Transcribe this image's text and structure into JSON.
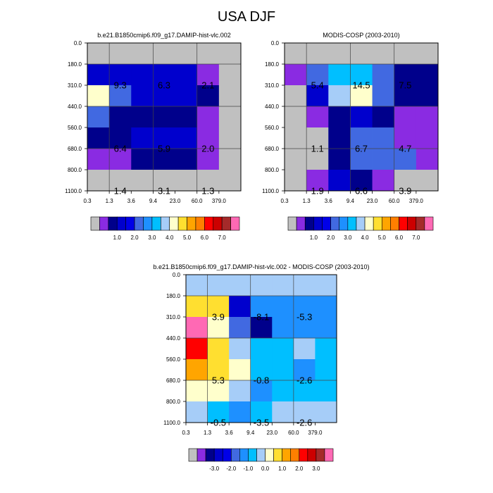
{
  "title": "USA DJF",
  "pressure_labels": [
    "0.0",
    "180.0",
    "310.0",
    "440.0",
    "560.0",
    "680.0",
    "800.0",
    "1100.0"
  ],
  "tau_labels": [
    "0.3",
    "1.3",
    "3.6",
    "9.4",
    "23.0",
    "60.0",
    "379.0"
  ],
  "palettes": {
    "absolute": [
      "#c0c0c0",
      "#8a2be2",
      "#00008b",
      "#0000cd",
      "#0000e8",
      "#4169e1",
      "#1e90ff",
      "#00bfff",
      "#a6cdf8",
      "#ffffcc",
      "#ffdf30",
      "#ffa500",
      "#ff7f00",
      "#ff0000",
      "#cc0000",
      "#a52a2a",
      "#ff69b4"
    ],
    "difference": [
      "#c0c0c0",
      "#8a2be2",
      "#00008b",
      "#0000cd",
      "#0000e8",
      "#4169e1",
      "#1e90ff",
      "#00bfff",
      "#a6cdf8",
      "#ffffcc",
      "#ffdf30",
      "#ffa500",
      "#ff7f00",
      "#ff0000",
      "#cc0000",
      "#a52a2a",
      "#ff69b4"
    ]
  },
  "chart_data": [
    {
      "type": "heatmap",
      "title": "b.e21.B1850cmip6.f09_g17.DAMIP-hist-vlc.002",
      "x_ticks": [
        "0.3",
        "1.3",
        "3.6",
        "9.4",
        "23.0",
        "60.0",
        "379.0"
      ],
      "y_ticks": [
        "0.0",
        "180.0",
        "310.0",
        "440.0",
        "560.0",
        "680.0",
        "800.0",
        "1100.0"
      ],
      "colorbar_labels": [
        "1.0",
        "2.0",
        "3.0",
        "4.0",
        "5.0",
        "6.0",
        "7.0"
      ],
      "cells": [
        [
          "#c0c0c0",
          "#c0c0c0",
          "#c0c0c0",
          "#c0c0c0",
          "#c0c0c0",
          "#c0c0c0",
          "#c0c0c0"
        ],
        [
          "#0000cd",
          "#0000cd",
          "#0000cd",
          "#0000cd",
          "#0000cd",
          "#8a2be2",
          "#c0c0c0"
        ],
        [
          "#ffffcc",
          "#4169e1",
          "#0000cd",
          "#0000cd",
          "#0000cd",
          "#00008b",
          "#c0c0c0"
        ],
        [
          "#4169e1",
          "#00008b",
          "#00008b",
          "#00008b",
          "#00008b",
          "#8a2be2",
          "#c0c0c0"
        ],
        [
          "#00008b",
          "#00008b",
          "#0000cd",
          "#0000cd",
          "#0000cd",
          "#8a2be2",
          "#c0c0c0"
        ],
        [
          "#8a2be2",
          "#8a2be2",
          "#00008b",
          "#00008b",
          "#00008b",
          "#8a2be2",
          "#c0c0c0"
        ],
        [
          "#c0c0c0",
          "#c0c0c0",
          "#c0c0c0",
          "#c0c0c0",
          "#c0c0c0",
          "#c0c0c0",
          "#c0c0c0"
        ]
      ],
      "labels": [
        {
          "row": 1,
          "col": 1,
          "text": "9.3"
        },
        {
          "row": 1,
          "col": 3,
          "text": "6.3"
        },
        {
          "row": 1,
          "col": 5,
          "text": "2.1"
        },
        {
          "row": 4,
          "col": 1,
          "text": "6.4"
        },
        {
          "row": 4,
          "col": 3,
          "text": "5.9"
        },
        {
          "row": 4,
          "col": 5,
          "text": "2.0"
        },
        {
          "row": 6,
          "col": 1,
          "text": "1.4"
        },
        {
          "row": 6,
          "col": 3,
          "text": "3.1"
        },
        {
          "row": 6,
          "col": 5,
          "text": "1.3"
        }
      ]
    },
    {
      "type": "heatmap",
      "title": "MODIS-COSP (2003-2010)",
      "x_ticks": [
        "0.3",
        "1.3",
        "3.6",
        "9.4",
        "23.0",
        "60.0",
        "379.0"
      ],
      "y_ticks": [
        "0.0",
        "180.0",
        "310.0",
        "440.0",
        "560.0",
        "680.0",
        "800.0",
        "1100.0"
      ],
      "colorbar_labels": [
        "1.0",
        "2.0",
        "3.0",
        "4.0",
        "5.0",
        "6.0",
        "7.0"
      ],
      "cells": [
        [
          "#c0c0c0",
          "#c0c0c0",
          "#c0c0c0",
          "#c0c0c0",
          "#c0c0c0",
          "#c0c0c0",
          "#c0c0c0"
        ],
        [
          "#8a2be2",
          "#4169e1",
          "#00bfff",
          "#00bfff",
          "#4169e1",
          "#00008b",
          "#00008b"
        ],
        [
          "#c0c0c0",
          "#0000cd",
          "#a6cdf8",
          "#ffffcc",
          "#4169e1",
          "#00008b",
          "#00008b"
        ],
        [
          "#c0c0c0",
          "#8a2be2",
          "#00008b",
          "#0000cd",
          "#00008b",
          "#8a2be2",
          "#8a2be2"
        ],
        [
          "#c0c0c0",
          "#c0c0c0",
          "#00008b",
          "#4169e1",
          "#4169e1",
          "#8a2be2",
          "#8a2be2"
        ],
        [
          "#c0c0c0",
          "#c0c0c0",
          "#00008b",
          "#4169e1",
          "#4169e1",
          "#4169e1",
          "#8a2be2"
        ],
        [
          "#c0c0c0",
          "#8a2be2",
          "#0000cd",
          "#00008b",
          "#8a2be2",
          "#c0c0c0",
          "#c0c0c0"
        ]
      ],
      "labels": [
        {
          "row": 1,
          "col": 1,
          "text": "5.4"
        },
        {
          "row": 1,
          "col": 3,
          "text": "14.5"
        },
        {
          "row": 1,
          "col": 5,
          "text": "7.5"
        },
        {
          "row": 4,
          "col": 1,
          "text": "1.1"
        },
        {
          "row": 4,
          "col": 3,
          "text": "6.7"
        },
        {
          "row": 4,
          "col": 5,
          "text": "4.7"
        },
        {
          "row": 6,
          "col": 1,
          "text": "1.9"
        },
        {
          "row": 6,
          "col": 3,
          "text": "6.6"
        },
        {
          "row": 6,
          "col": 5,
          "text": "3.9"
        }
      ]
    },
    {
      "type": "heatmap",
      "title": "b.e21.B1850cmip6.f09_g17.DAMIP-hist-vlc.002 - MODIS-COSP (2003-2010)",
      "x_ticks": [
        "0.3",
        "1.3",
        "3.6",
        "9.4",
        "23.0",
        "60.0",
        "379.0"
      ],
      "y_ticks": [
        "0.0",
        "180.0",
        "310.0",
        "440.0",
        "560.0",
        "680.0",
        "800.0",
        "1100.0"
      ],
      "colorbar_labels": [
        "-3.0",
        "-2.0",
        "-1.0",
        "0.0",
        "1.0",
        "2.0",
        "3.0"
      ],
      "cells": [
        [
          "#a6cdf8",
          "#a6cdf8",
          "#a6cdf8",
          "#a6cdf8",
          "#a6cdf8",
          "#a6cdf8",
          "#a6cdf8"
        ],
        [
          "#ffdf30",
          "#ffdf30",
          "#0000cd",
          "#1e90ff",
          "#1e90ff",
          "#1e90ff",
          "#1e90ff"
        ],
        [
          "#ff69b4",
          "#ffffcc",
          "#4169e1",
          "#00008b",
          "#1e90ff",
          "#1e90ff",
          "#1e90ff"
        ],
        [
          "#ff0000",
          "#ffdf30",
          "#a6cdf8",
          "#00bfff",
          "#00bfff",
          "#a6cdf8",
          "#00bfff"
        ],
        [
          "#ffa500",
          "#ffdf30",
          "#ffffcc",
          "#00bfff",
          "#00bfff",
          "#1e90ff",
          "#00bfff"
        ],
        [
          "#ffffcc",
          "#ffffcc",
          "#a6cdf8",
          "#1e90ff",
          "#00bfff",
          "#00bfff",
          "#00bfff"
        ],
        [
          "#a6cdf8",
          "#00bfff",
          "#1e90ff",
          "#00bfff",
          "#a6cdf8",
          "#a6cdf8",
          "#a6cdf8"
        ]
      ],
      "labels": [
        {
          "row": 1,
          "col": 1,
          "text": "3.9"
        },
        {
          "row": 1,
          "col": 3,
          "text": "-8.1"
        },
        {
          "row": 1,
          "col": 5,
          "text": "-5.3"
        },
        {
          "row": 4,
          "col": 1,
          "text": "5.3"
        },
        {
          "row": 4,
          "col": 3,
          "text": "-0.8"
        },
        {
          "row": 4,
          "col": 5,
          "text": "-2.6"
        },
        {
          "row": 6,
          "col": 1,
          "text": "-0.5"
        },
        {
          "row": 6,
          "col": 3,
          "text": "-3.5"
        },
        {
          "row": 6,
          "col": 5,
          "text": "-2.6"
        }
      ]
    }
  ]
}
